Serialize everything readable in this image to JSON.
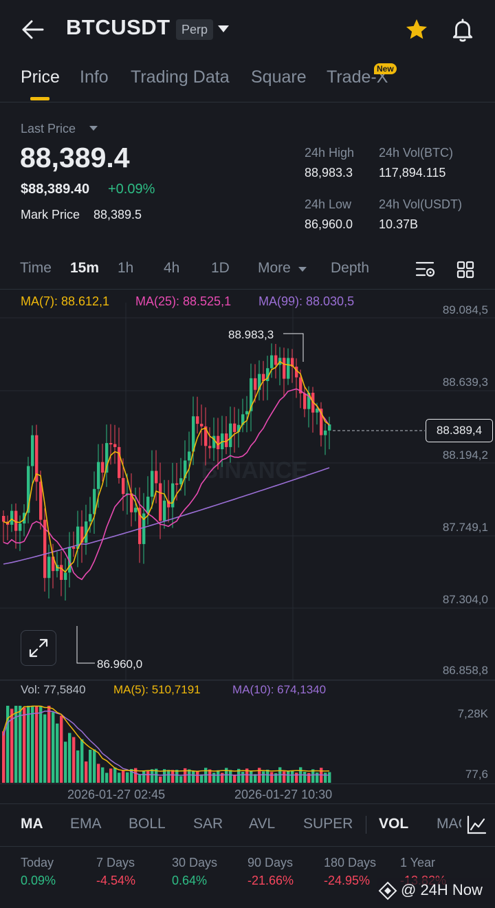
{
  "header": {
    "symbol": "BTCUSDT",
    "contract_type": "Perp"
  },
  "tabs": [
    {
      "label": "Price",
      "active": true
    },
    {
      "label": "Info"
    },
    {
      "label": "Trading Data"
    },
    {
      "label": "Square"
    },
    {
      "label": "Trade-X",
      "badge": "New"
    }
  ],
  "price": {
    "last_price_label": "Last Price",
    "last_price": "88,389.4",
    "usd_value": "$88,389.40",
    "change": "+0.09%",
    "mark_price_label": "Mark Price",
    "mark_price": "88,389.5"
  },
  "stats": {
    "high_label": "24h High",
    "high": "88,983.3",
    "vol_btc_label": "24h Vol(BTC)",
    "vol_btc": "117,894.115",
    "low_label": "24h Low",
    "low": "86,960.0",
    "vol_usdt_label": "24h Vol(USDT)",
    "vol_usdt": "10.37B"
  },
  "timeframes": {
    "items": [
      "Time",
      "15m",
      "1h",
      "4h",
      "1D",
      "More",
      "Depth"
    ],
    "selected": "15m"
  },
  "ma": {
    "ma7": "MA(7): 88.612,1",
    "ma25": "MA(25): 88.525,1",
    "ma99": "MA(99): 88.030,5"
  },
  "price_axis": [
    "89.084,5",
    "88.639,3",
    "88.194,2",
    "87.749,1",
    "87.304,0",
    "86.858,8"
  ],
  "chart_annotations": {
    "high_marker": "88.983,3",
    "low_marker": "86.960,0",
    "current_price_tag": "88.389,4",
    "watermark": "BINANCE"
  },
  "volume": {
    "vol": "Vol: 77,5840",
    "ma5": "MA(5): 510,7191",
    "ma10": "MA(10): 674,1340",
    "axis_top": "7,28K",
    "axis_bottom": "77,6"
  },
  "time_axis": [
    "2026-01-27 02:45",
    "2026-01-27 10:30"
  ],
  "indicators": {
    "items": [
      "MA",
      "EMA",
      "BOLL",
      "SAR",
      "AVL",
      "SUPER",
      "VOL",
      "MAC"
    ],
    "active": [
      "MA",
      "VOL"
    ]
  },
  "performance": [
    {
      "label": "Today",
      "value": "0.09%",
      "dir": "up"
    },
    {
      "label": "7 Days",
      "value": "-4.54%",
      "dir": "down"
    },
    {
      "label": "30 Days",
      "value": "0.64%",
      "dir": "up"
    },
    {
      "label": "90 Days",
      "value": "-21.66%",
      "dir": "down"
    },
    {
      "label": "180 Days",
      "value": "-24.95%",
      "dir": "down"
    },
    {
      "label": "1 Year",
      "value": "-13.82%",
      "dir": "down"
    }
  ],
  "watermark_footer": "@ 24H Now",
  "colors": {
    "up": "#2ebd85",
    "down": "#f6465d",
    "accent": "#f0b90b",
    "ma7": "#f0b90b",
    "ma25": "#e84bb2",
    "ma99": "#9b6fd6"
  }
}
